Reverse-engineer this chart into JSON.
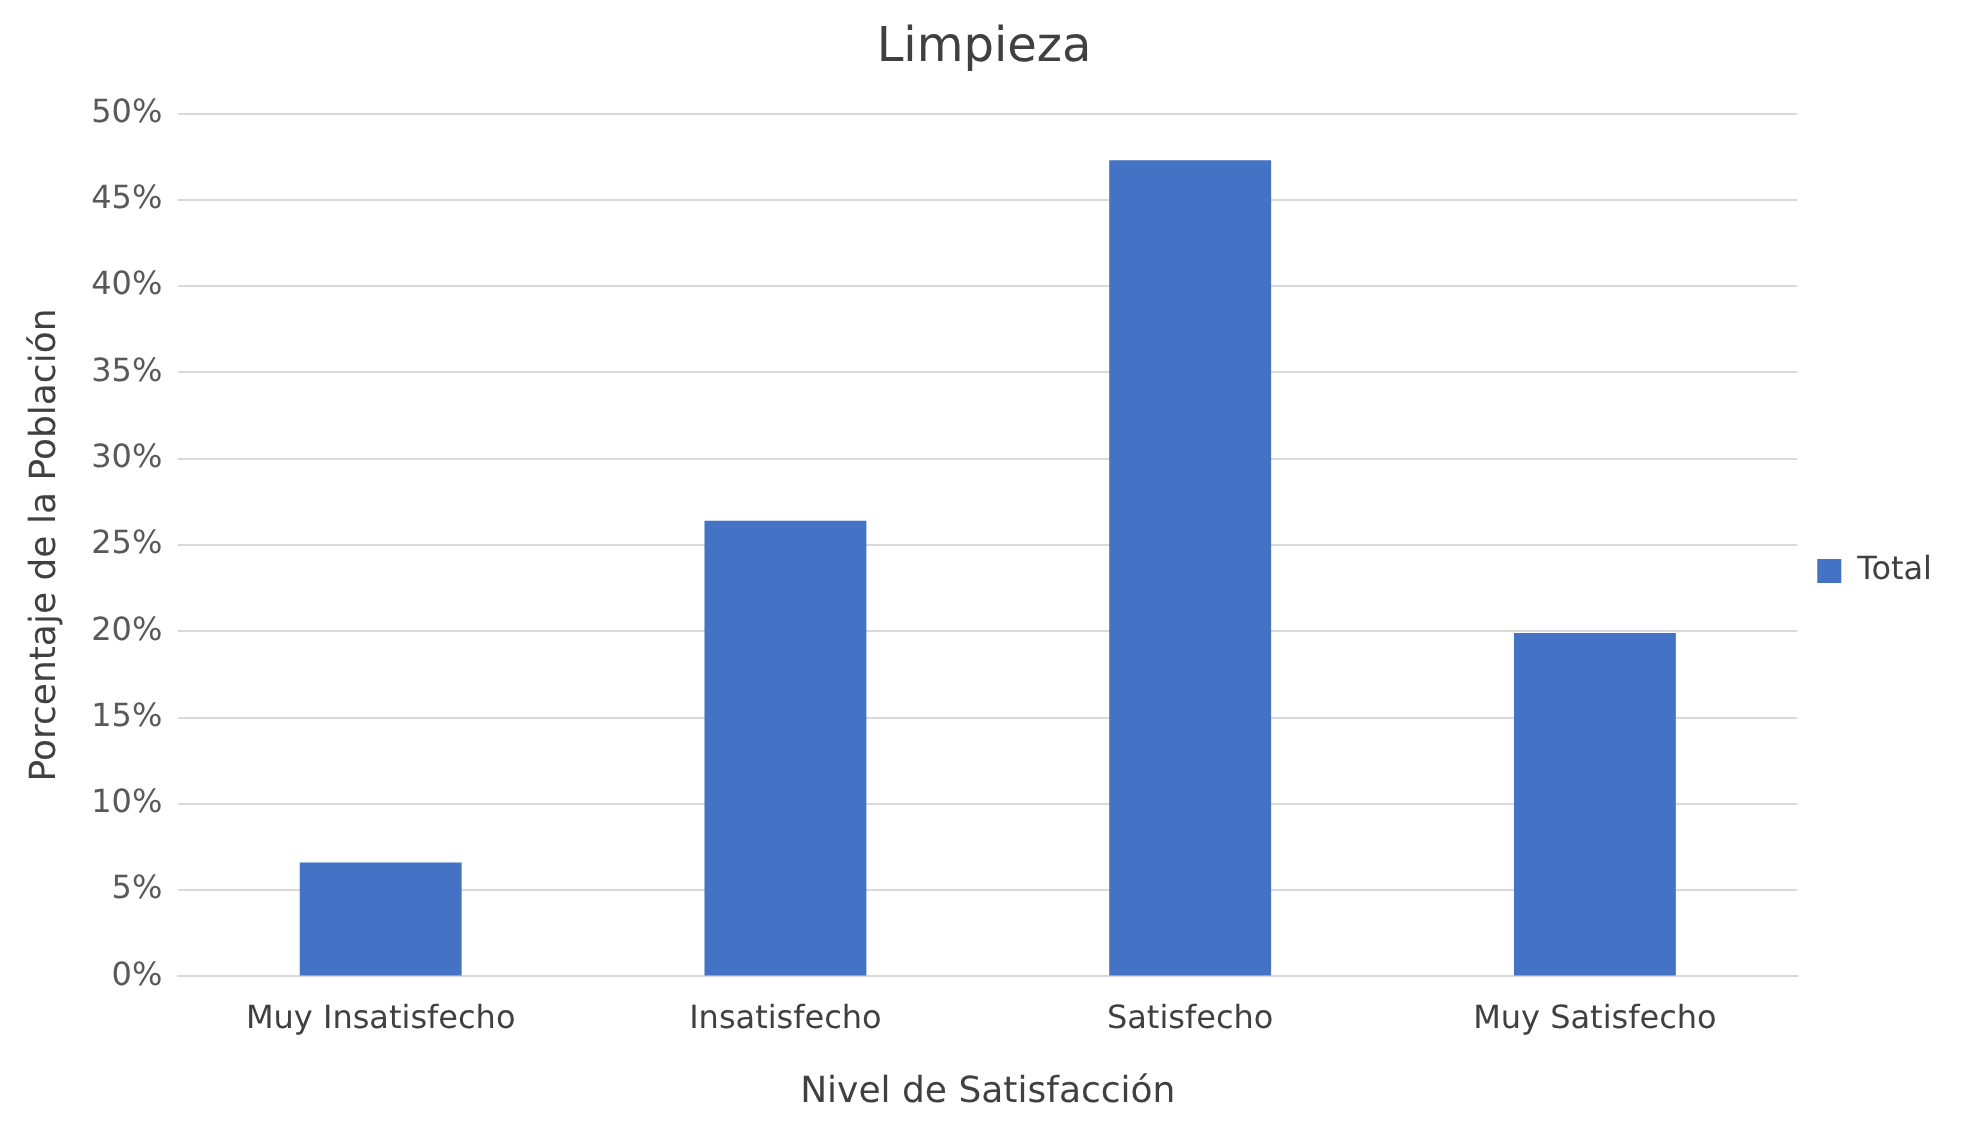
{
  "chart_data": {
    "type": "bar",
    "title": "Limpieza",
    "xlabel": "Nivel de Satisfacción",
    "ylabel": "Porcentaje de la Población",
    "categories": [
      "Muy Insatisfecho",
      "Insatisfecho",
      "Satisfecho",
      "Muy Satisfecho"
    ],
    "series": [
      {
        "name": "Total",
        "color": "#4472c4",
        "values": [
          6.6,
          26.4,
          47.3,
          19.9
        ]
      }
    ],
    "ylim": [
      0,
      50
    ],
    "yticks": [
      {
        "value": 0,
        "label": "0%"
      },
      {
        "value": 5,
        "label": "5%"
      },
      {
        "value": 10,
        "label": "10%"
      },
      {
        "value": 15,
        "label": "15%"
      },
      {
        "value": 20,
        "label": "20%"
      },
      {
        "value": 25,
        "label": "25%"
      },
      {
        "value": 30,
        "label": "30%"
      },
      {
        "value": 35,
        "label": "35%"
      },
      {
        "value": 40,
        "label": "40%"
      },
      {
        "value": 45,
        "label": "45%"
      },
      {
        "value": 50,
        "label": "50%"
      }
    ],
    "grid": "y",
    "legend": "right"
  }
}
